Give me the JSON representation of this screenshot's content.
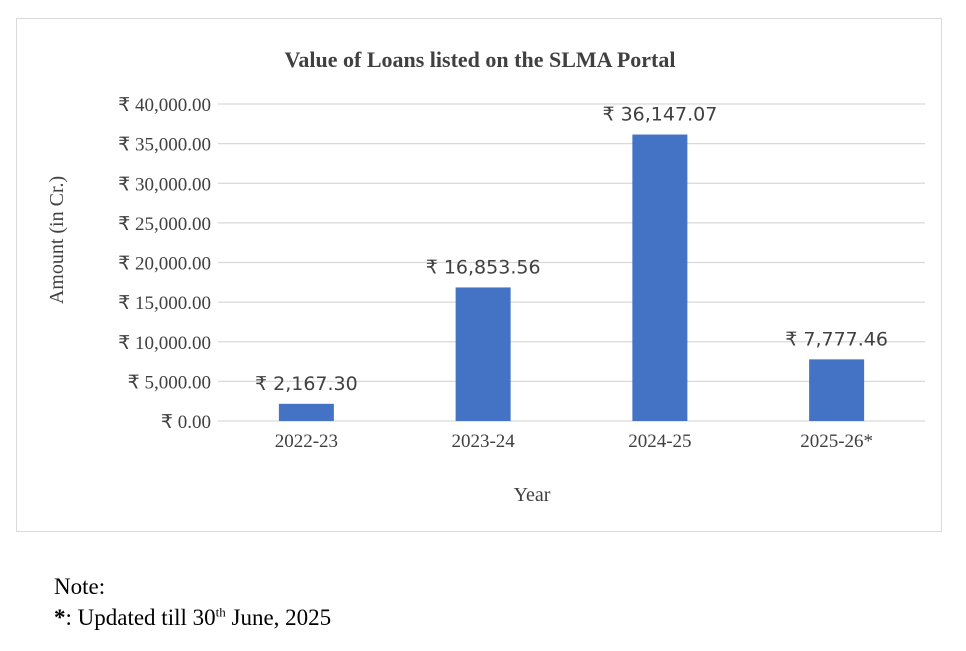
{
  "colors": {
    "bar": "#4472c4",
    "grid": "#d9d9d9",
    "text": "#404040"
  },
  "chart_data": {
    "type": "bar",
    "title": "Value of Loans listed on the SLMA Portal",
    "xlabel": "Year",
    "ylabel": "Amount (in Cr.)",
    "categories": [
      "2022-23",
      "2023-24",
      "2024-25",
      "2025-26*"
    ],
    "values": [
      2167.3,
      16853.56,
      36147.07,
      7777.46
    ],
    "data_labels": [
      "₹ 2,167.30",
      "₹ 16,853.56",
      "₹ 36,147.07",
      "₹ 7,777.46"
    ],
    "ylim": [
      0,
      40000
    ],
    "yticks": [
      0,
      5000,
      10000,
      15000,
      20000,
      25000,
      30000,
      35000,
      40000
    ],
    "ytick_labels": [
      "₹ 0.00",
      "₹ 5,000.00",
      "₹ 10,000.00",
      "₹ 15,000.00",
      "₹ 20,000.00",
      "₹ 25,000.00",
      "₹ 30,000.00",
      "₹ 35,000.00",
      "₹ 40,000.00"
    ],
    "grid": true,
    "legend": "none"
  },
  "note": {
    "heading": "Note:",
    "marker": "*",
    "text_before_sup": ": Updated till 30",
    "sup": "th",
    "text_after_sup": " June, 2025"
  }
}
